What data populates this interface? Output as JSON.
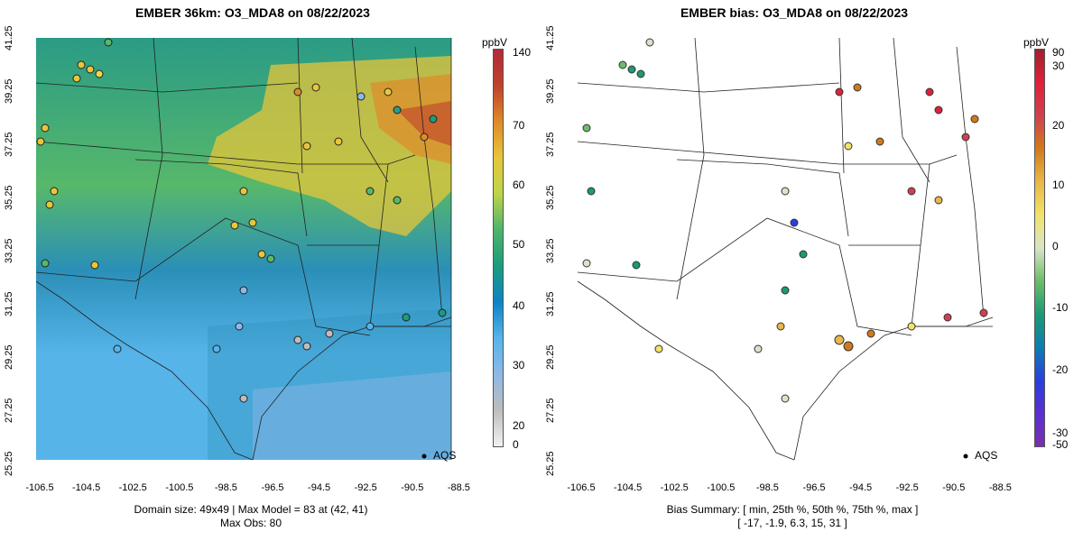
{
  "left_panel": {
    "title": "EMBER 36km: O3_MDA8 on 08/22/2023",
    "unit": "ppbV",
    "colorbar_ticks": [
      "140",
      "70",
      "60",
      "50",
      "40",
      "30",
      "20",
      "0"
    ],
    "legend_label": "AQS",
    "footer_line1": "Domain size: 49x49 | Max Model = 83 at (42, 41)",
    "footer_line2": "Max Obs: 80",
    "colorbar_stops": [
      "#f2f2f2",
      "#bdbdbd",
      "#8fb8e6",
      "#56b4e9",
      "#0e82c5",
      "#1b9c7d",
      "#4db36b",
      "#bdd54a",
      "#e7c63a",
      "#e08a2a",
      "#c0412c",
      "#b2293a"
    ]
  },
  "right_panel": {
    "title": "EMBER bias: O3_MDA8 on 08/22/2023",
    "unit": "ppbV",
    "colorbar_ticks": [
      "90",
      "30",
      "20",
      "10",
      "0",
      "-10",
      "-20",
      "-30",
      "-50"
    ],
    "legend_label": "AQS",
    "footer_line1": "Bias Summary: [ min, 25th %, 50th %, 75th %, max ]",
    "footer_line2": "[ -17,   -1.9,   6.3,   15,   31 ]",
    "colorbar_stops": [
      "#7b2fb0",
      "#5b2fd0",
      "#2a3fe0",
      "#0b7fb0",
      "#1c9a72",
      "#6bbd6a",
      "#d9e4c8",
      "#f0e36a",
      "#e8b84a",
      "#d07a1a",
      "#d04050",
      "#e0203a",
      "#a02030"
    ]
  },
  "axes": {
    "x_ticks": [
      "-106.5",
      "-104.5",
      "-102.5",
      "-100.5",
      "-98.5",
      "-96.5",
      "-94.5",
      "-92.5",
      "-90.5",
      "-88.5"
    ],
    "y_ticks": [
      "41.25",
      "39.25",
      "37.25",
      "35.25",
      "33.25",
      "31.25",
      "29.25",
      "27.25",
      "25.25"
    ]
  },
  "colors": {
    "map_ocean_blue": "#55aee3",
    "bias_marker_outline": "#333333"
  }
}
